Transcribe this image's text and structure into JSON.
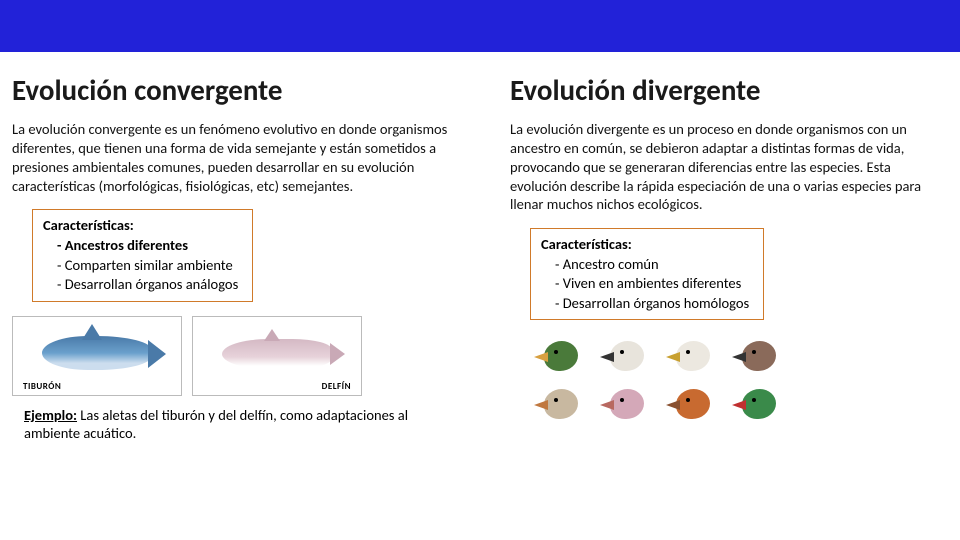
{
  "banner": {
    "color": "#2222d8"
  },
  "left": {
    "title": "Evolución convergente",
    "description": "La evolución convergente es un fenómeno evolutivo en donde organismos diferentes, que tienen una forma de vida semejante y están sometidos a presiones ambientales comunes, pueden desarrollar en su evolución características (morfológicas, fisiológicas, etc) semejantes.",
    "char_title": "Características:",
    "char_items": [
      {
        "text": "- Ancestros diferentes",
        "bold": true
      },
      {
        "text": "- Comparten similar ambiente",
        "bold": false
      },
      {
        "text": "- Desarrollan órganos análogos",
        "bold": false
      }
    ],
    "image_labels": {
      "shark": "TIBURÓN",
      "dolphin": "DELFÍN"
    },
    "example_label": "Ejemplo:",
    "example_text": " Las aletas del tiburón y del delfín, como adaptaciones al ambiente acuático."
  },
  "right": {
    "title": "Evolución divergente",
    "description": "La evolución divergente es un proceso en donde organismos con un ancestro en común, se debieron adaptar a distintas formas de vida, provocando que se generaran diferencias entre las especies. Esta evolución describe la rápida especiación de una o varias especies para llenar muchos nichos ecológicos.",
    "char_title": "Características:",
    "char_items": [
      {
        "text": "- Ancestro común",
        "bold": false
      },
      {
        "text": "- Viven en ambientes diferentes",
        "bold": false
      },
      {
        "text": "- Desarrollan órganos homólogos",
        "bold": false
      }
    ],
    "birds": [
      {
        "head": "#4a7a3a",
        "beak": "#d8a040"
      },
      {
        "head": "#e8e4dc",
        "beak": "#333333"
      },
      {
        "head": "#ece8e0",
        "beak": "#c8a030"
      },
      {
        "head": "#8a6a5a",
        "beak": "#333333"
      },
      {
        "head": "#c8b8a0",
        "beak": "#c07840"
      },
      {
        "head": "#d4a8b8",
        "beak": "#b86860"
      },
      {
        "head": "#c86a30",
        "beak": "#885030"
      },
      {
        "head": "#3a8a4a",
        "beak": "#c03030"
      }
    ]
  },
  "char_box_border": "#d07a2a"
}
